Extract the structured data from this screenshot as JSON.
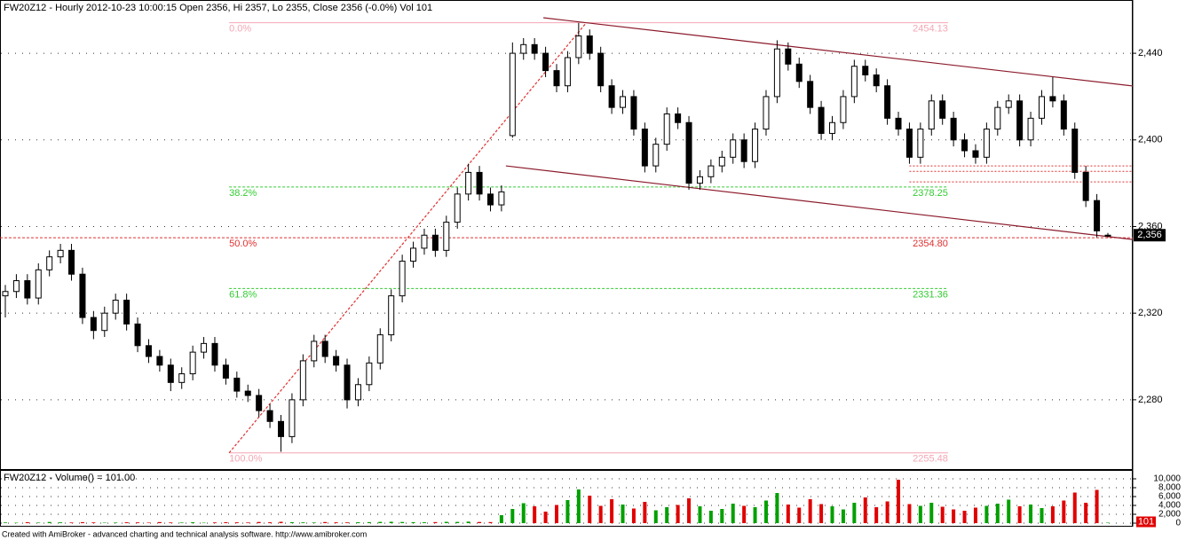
{
  "chart_data": [
    {
      "type": "candlestick",
      "title": "FW20Z12 - Hourly 2012-10-23 10:00:15 Open 2356, Hi 2357, Lo 2355, Close 2356 (-0.0%) Vol 101",
      "open": [
        2328,
        2330,
        2335,
        2327,
        2340,
        2346,
        2349,
        2338,
        2318,
        2312,
        2320,
        2326,
        2315,
        2305,
        2300,
        2296,
        2288,
        2292,
        2302,
        2306,
        2296,
        2290,
        2284,
        2282,
        2275,
        2270,
        2263,
        2280,
        2298,
        2307,
        2300,
        2296,
        2280,
        2287,
        2297,
        2310,
        2328,
        2344,
        2350,
        2356,
        2349,
        2362,
        2375,
        2385,
        2375,
        2370,
        2402,
        2440,
        2444,
        2440,
        2432,
        2425,
        2438,
        2448,
        2440,
        2425,
        2415,
        2420,
        2405,
        2388,
        2398,
        2412,
        2408,
        2380,
        2383,
        2388,
        2392,
        2400,
        2390,
        2405,
        2420,
        2442,
        2435,
        2427,
        2415,
        2403,
        2408,
        2420,
        2434,
        2430,
        2425,
        2410,
        2405,
        2392,
        2405,
        2418,
        2410,
        2400,
        2395,
        2392,
        2405,
        2415,
        2418,
        2400,
        2410,
        2420,
        2418,
        2405,
        2385,
        2372,
        2356
      ],
      "high": [
        2333,
        2338,
        2338,
        2343,
        2349,
        2352,
        2352,
        2341,
        2321,
        2323,
        2329,
        2329,
        2318,
        2308,
        2303,
        2299,
        2295,
        2305,
        2309,
        2309,
        2299,
        2293,
        2287,
        2285,
        2278,
        2273,
        2283,
        2301,
        2310,
        2310,
        2303,
        2299,
        2290,
        2300,
        2313,
        2331,
        2347,
        2353,
        2359,
        2359,
        2365,
        2378,
        2389,
        2388,
        2378,
        2379,
        2445,
        2447,
        2447,
        2443,
        2435,
        2441,
        2454,
        2451,
        2443,
        2428,
        2423,
        2423,
        2408,
        2401,
        2415,
        2415,
        2411,
        2386,
        2391,
        2395,
        2403,
        2403,
        2408,
        2423,
        2446,
        2445,
        2438,
        2430,
        2418,
        2411,
        2423,
        2437,
        2437,
        2433,
        2428,
        2413,
        2408,
        2408,
        2421,
        2421,
        2413,
        2403,
        2398,
        2408,
        2418,
        2421,
        2421,
        2413,
        2423,
        2429,
        2421,
        2408,
        2388,
        2375,
        2357
      ],
      "low": [
        2318,
        2327,
        2324,
        2324,
        2337,
        2343,
        2335,
        2315,
        2308,
        2309,
        2317,
        2312,
        2302,
        2297,
        2293,
        2284,
        2285,
        2289,
        2299,
        2293,
        2287,
        2281,
        2279,
        2272,
        2267,
        2256,
        2260,
        2277,
        2295,
        2297,
        2293,
        2276,
        2277,
        2284,
        2294,
        2307,
        2325,
        2341,
        2347,
        2346,
        2346,
        2359,
        2372,
        2372,
        2367,
        2367,
        2401,
        2437,
        2437,
        2429,
        2422,
        2422,
        2435,
        2437,
        2422,
        2412,
        2412,
        2402,
        2385,
        2385,
        2395,
        2405,
        2377,
        2377,
        2380,
        2385,
        2389,
        2387,
        2387,
        2402,
        2417,
        2432,
        2424,
        2412,
        2400,
        2400,
        2405,
        2417,
        2427,
        2422,
        2407,
        2402,
        2389,
        2389,
        2402,
        2407,
        2397,
        2392,
        2389,
        2389,
        2402,
        2412,
        2397,
        2397,
        2407,
        2415,
        2402,
        2382,
        2369,
        2355,
        2355
      ],
      "close": [
        2330,
        2335,
        2327,
        2340,
        2346,
        2349,
        2338,
        2318,
        2312,
        2320,
        2326,
        2315,
        2305,
        2300,
        2296,
        2288,
        2292,
        2302,
        2306,
        2296,
        2290,
        2284,
        2282,
        2275,
        2270,
        2263,
        2280,
        2298,
        2307,
        2300,
        2296,
        2280,
        2287,
        2297,
        2310,
        2328,
        2344,
        2350,
        2356,
        2349,
        2362,
        2375,
        2385,
        2375,
        2370,
        2376,
        2440,
        2444,
        2440,
        2432,
        2425,
        2438,
        2448,
        2440,
        2425,
        2415,
        2420,
        2405,
        2388,
        2398,
        2412,
        2408,
        2380,
        2383,
        2388,
        2392,
        2400,
        2390,
        2405,
        2420,
        2442,
        2435,
        2427,
        2415,
        2403,
        2408,
        2420,
        2434,
        2430,
        2425,
        2410,
        2405,
        2392,
        2405,
        2418,
        2410,
        2400,
        2395,
        2392,
        2405,
        2415,
        2418,
        2400,
        2410,
        2420,
        2418,
        2405,
        2385,
        2372,
        2358,
        2356
      ],
      "ylim": [
        2247.6,
        2464.6
      ],
      "yticks": [
        {
          "value": 2280,
          "label": "2,280"
        },
        {
          "value": 2320,
          "label": "2,320"
        },
        {
          "value": 2360,
          "label": "2,360"
        },
        {
          "value": 2400,
          "label": "2,400"
        },
        {
          "value": 2440,
          "label": "2,440"
        }
      ],
      "grid": true,
      "up_color": "#ffffff",
      "down_color": "#000000",
      "outline_color": "#000000",
      "fib_start_index": 20.3,
      "fib_end_index": 85.5,
      "fib_levels": [
        {
          "label": "0.0%",
          "value": 2454.13,
          "value_label": "2454.13",
          "color": "#f4a6b4",
          "dashed": false,
          "full_width": false
        },
        {
          "label": "38.2%",
          "value": 2378.25,
          "value_label": "2378.25",
          "color": "#33cc33",
          "dashed": true,
          "full_width": false
        },
        {
          "label": "50.0%",
          "value": 2354.8,
          "value_label": "2354.80",
          "color": "#e03030",
          "dashed": true,
          "full_width": true
        },
        {
          "label": "61.8%",
          "value": 2331.36,
          "value_label": "2331.36",
          "color": "#33cc33",
          "dashed": true,
          "full_width": false
        },
        {
          "label": "100.0%",
          "value": 2255.48,
          "value_label": "2255.48",
          "color": "#f4a6b4",
          "dashed": false,
          "full_width": false
        }
      ],
      "trendlines": [
        {
          "start_index": 48.8,
          "start_value": 2456.4,
          "end_index": 102.3,
          "end_value": 2424.9,
          "color": "#8b1a2b",
          "dashed": false
        },
        {
          "start_index": 45.4,
          "start_value": 2388,
          "end_index": 102.3,
          "end_value": 2354,
          "color": "#8b1a2b",
          "dashed": false
        },
        {
          "start_index": 20.3,
          "start_value": 2255.48,
          "end_index": 52.7,
          "end_value": 2454.13,
          "color": "#e03030",
          "dashed": true
        }
      ],
      "hlines": [
        {
          "value": 2388,
          "start_index": 82
        },
        {
          "value": 2385.5,
          "start_index": 82
        },
        {
          "value": 2380.6,
          "start_index": 82
        }
      ],
      "hline_color": "#e03030",
      "last_label": {
        "value": 2356,
        "label": "2,356"
      }
    },
    {
      "type": "bar",
      "title": "FW20Z12 - Volume() = 101.00",
      "values": [
        150,
        90,
        200,
        120,
        260,
        180,
        140,
        220,
        160,
        100,
        130,
        190,
        170,
        110,
        240,
        150,
        130,
        200,
        90,
        160,
        210,
        180,
        140,
        260,
        190,
        300,
        220,
        170,
        140,
        250,
        180,
        160,
        200,
        230,
        280,
        310,
        260,
        220,
        190,
        240,
        300,
        280,
        350,
        260,
        240,
        1800,
        3200,
        4500,
        3800,
        2600,
        4100,
        5200,
        7600,
        6200,
        3900,
        5400,
        4200,
        3300,
        4800,
        2900,
        3600,
        4100,
        5600,
        3800,
        2800,
        3200,
        4400,
        3900,
        3600,
        5100,
        6800,
        4200,
        3500,
        5400,
        4300,
        3800,
        3100,
        4600,
        5800,
        3600,
        4900,
        9800,
        4300,
        3900,
        4600,
        3700,
        3100,
        2800,
        3500,
        3900,
        4400,
        5300,
        3800,
        4200,
        3400,
        3800,
        5100,
        6900,
        4600,
        7500,
        101
      ],
      "ylim": [
        0,
        10500
      ],
      "yticks": [
        0,
        {
          "value": 2000,
          "label": "2,000"
        },
        {
          "value": 4000,
          "label": "4,000"
        },
        {
          "value": 6000,
          "label": "6,000"
        },
        {
          "value": 8000,
          "label": "8,000"
        },
        {
          "value": 10000,
          "label": "10,000"
        }
      ],
      "grid": true,
      "up_color": "#00a000",
      "down_color": "#e00000",
      "last_color": "#e00000"
    }
  ],
  "footer": "Created with AmiBroker - advanced charting and technical analysis software. http://www.amibroker.com"
}
